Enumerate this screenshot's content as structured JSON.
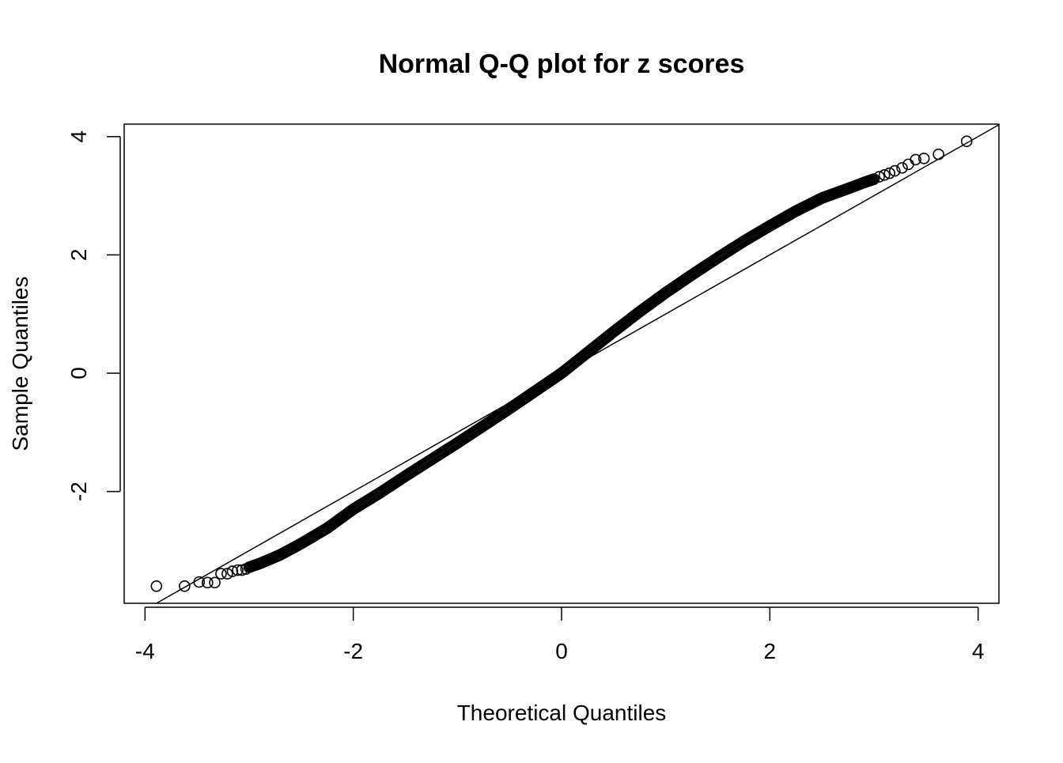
{
  "chart_data": {
    "type": "scatter",
    "title": "Normal Q-Q plot for z scores",
    "xlabel": "Theoretical Quantiles",
    "ylabel": "Sample Quantiles",
    "xlim": [
      -4.2,
      4.2
    ],
    "ylim": [
      -3.89,
      4.21
    ],
    "xticks": [
      -4,
      -2,
      0,
      2,
      4
    ],
    "yticks": [
      -2,
      0,
      2,
      4
    ],
    "xtick_labels": [
      "-4",
      "-2",
      "0",
      "2",
      "4"
    ],
    "ytick_labels": [
      "-2",
      "0",
      "2",
      "4"
    ],
    "grid": false,
    "reference_line": {
      "slope": 1.0,
      "intercept": 0.0
    },
    "marker": "open-circle",
    "points": [
      [
        -3.89,
        -3.6
      ],
      [
        -3.62,
        -3.6
      ],
      [
        -3.48,
        -3.53
      ],
      [
        -3.4,
        -3.54
      ],
      [
        -3.33,
        -3.54
      ],
      [
        -3.27,
        -3.39
      ],
      [
        -3.21,
        -3.39
      ],
      [
        -3.16,
        -3.35
      ],
      [
        -3.11,
        -3.33
      ],
      [
        -3.07,
        -3.33
      ],
      [
        -3.03,
        -3.31
      ],
      [
        -3.0,
        -3.28
      ],
      [
        -2.9,
        -3.22
      ],
      [
        -2.7,
        -3.07
      ],
      [
        -2.5,
        -2.88
      ],
      [
        -2.25,
        -2.62
      ],
      [
        -2.0,
        -2.3
      ],
      [
        -1.75,
        -2.03
      ],
      [
        -1.5,
        -1.74
      ],
      [
        -1.25,
        -1.46
      ],
      [
        -1.0,
        -1.18
      ],
      [
        -0.75,
        -0.89
      ],
      [
        -0.5,
        -0.6
      ],
      [
        -0.25,
        -0.3
      ],
      [
        0.0,
        0.0
      ],
      [
        0.25,
        0.35
      ],
      [
        0.5,
        0.7
      ],
      [
        0.75,
        1.04
      ],
      [
        1.0,
        1.36
      ],
      [
        1.25,
        1.66
      ],
      [
        1.5,
        1.95
      ],
      [
        1.75,
        2.23
      ],
      [
        2.0,
        2.49
      ],
      [
        2.25,
        2.74
      ],
      [
        2.5,
        2.96
      ],
      [
        2.75,
        3.12
      ],
      [
        2.9,
        3.22
      ],
      [
        3.0,
        3.28
      ],
      [
        3.05,
        3.32
      ],
      [
        3.1,
        3.35
      ],
      [
        3.15,
        3.38
      ],
      [
        3.2,
        3.42
      ],
      [
        3.27,
        3.47
      ],
      [
        3.33,
        3.53
      ],
      [
        3.4,
        3.61
      ],
      [
        3.48,
        3.63
      ],
      [
        3.62,
        3.7
      ],
      [
        3.89,
        3.92
      ]
    ]
  }
}
